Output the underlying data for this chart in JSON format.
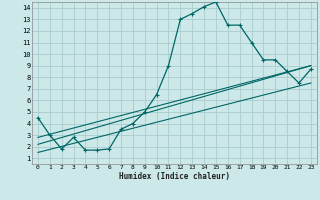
{
  "xlabel": "Humidex (Indice chaleur)",
  "bg_color": "#cce8e8",
  "grid_color": "#aacccc",
  "line_color": "#006666",
  "xlim": [
    -0.5,
    23.5
  ],
  "ylim": [
    0.5,
    14.5
  ],
  "xticks": [
    0,
    1,
    2,
    3,
    4,
    5,
    6,
    7,
    8,
    9,
    10,
    11,
    12,
    13,
    14,
    15,
    16,
    17,
    18,
    19,
    20,
    21,
    22,
    23
  ],
  "yticks": [
    1,
    2,
    3,
    4,
    5,
    6,
    7,
    8,
    9,
    10,
    11,
    12,
    13,
    14
  ],
  "curve1_x": [
    0,
    1,
    2,
    3,
    4,
    5,
    6,
    7,
    8,
    9,
    10,
    11,
    12,
    13,
    14,
    15,
    16,
    17,
    18,
    19,
    20,
    21,
    22,
    23
  ],
  "curve1_y": [
    4.5,
    3.0,
    1.8,
    2.8,
    1.7,
    1.7,
    1.8,
    3.5,
    4.0,
    5.0,
    6.5,
    9.0,
    13.0,
    13.5,
    14.1,
    14.5,
    12.5,
    12.5,
    11.0,
    9.5,
    9.5,
    8.5,
    7.5,
    8.7
  ],
  "line2_x": [
    0,
    23
  ],
  "line2_y": [
    2.2,
    9.0
  ],
  "line3_x": [
    0,
    23
  ],
  "line3_y": [
    2.8,
    9.0
  ],
  "line4_x": [
    0,
    23
  ],
  "line4_y": [
    1.5,
    7.5
  ]
}
